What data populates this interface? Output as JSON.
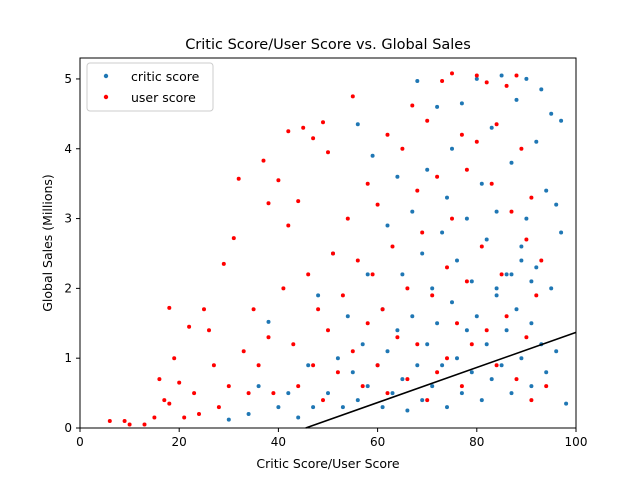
{
  "chart_data": {
    "type": "scatter",
    "title": "Critic Score/User Score vs. Global Sales",
    "xlabel": "Critic Score/User Score",
    "ylabel": "Global Sales (Millions)",
    "xlim": [
      0,
      100
    ],
    "ylim": [
      0,
      5.3
    ],
    "xticks": [
      0,
      20,
      40,
      60,
      80,
      100
    ],
    "yticks": [
      0,
      1,
      2,
      3,
      4,
      5
    ],
    "grid": false,
    "legend_position": "top-left",
    "series": [
      {
        "name": "critic score",
        "color": "#1f77b4",
        "points": [
          [
            30,
            0.12
          ],
          [
            34,
            0.2
          ],
          [
            36,
            0.6
          ],
          [
            38,
            1.52
          ],
          [
            40,
            0.3
          ],
          [
            42,
            0.5
          ],
          [
            44,
            0.15
          ],
          [
            46,
            0.9
          ],
          [
            47,
            0.3
          ],
          [
            48,
            1.9
          ],
          [
            50,
            0.5
          ],
          [
            51,
            2.5
          ],
          [
            52,
            1.0
          ],
          [
            53,
            0.3
          ],
          [
            54,
            1.6
          ],
          [
            55,
            0.8
          ],
          [
            56,
            4.35
          ],
          [
            56,
            0.4
          ],
          [
            57,
            1.2
          ],
          [
            58,
            2.2
          ],
          [
            58,
            0.6
          ],
          [
            59,
            3.9
          ],
          [
            60,
            0.9
          ],
          [
            61,
            1.7
          ],
          [
            61,
            0.3
          ],
          [
            62,
            2.9
          ],
          [
            62,
            1.1
          ],
          [
            63,
            0.5
          ],
          [
            64,
            3.6
          ],
          [
            64,
            1.4
          ],
          [
            65,
            2.2
          ],
          [
            65,
            0.7
          ],
          [
            66,
            0.25
          ],
          [
            67,
            3.1
          ],
          [
            67,
            1.6
          ],
          [
            68,
            4.97
          ],
          [
            68,
            0.9
          ],
          [
            69,
            2.5
          ],
          [
            69,
            0.4
          ],
          [
            70,
            3.7
          ],
          [
            70,
            1.2
          ],
          [
            71,
            2.0
          ],
          [
            71,
            0.6
          ],
          [
            72,
            4.6
          ],
          [
            72,
            1.5
          ],
          [
            73,
            2.8
          ],
          [
            73,
            0.9
          ],
          [
            74,
            3.3
          ],
          [
            74,
            0.3
          ],
          [
            75,
            4.0
          ],
          [
            75,
            1.8
          ],
          [
            76,
            2.4
          ],
          [
            76,
            1.0
          ],
          [
            77,
            4.65
          ],
          [
            77,
            0.5
          ],
          [
            78,
            3.0
          ],
          [
            78,
            1.4
          ],
          [
            79,
            2.1
          ],
          [
            79,
            0.8
          ],
          [
            80,
            5.0
          ],
          [
            80,
            1.6
          ],
          [
            81,
            3.5
          ],
          [
            81,
            0.4
          ],
          [
            82,
            2.7
          ],
          [
            82,
            1.2
          ],
          [
            83,
            4.3
          ],
          [
            83,
            0.7
          ],
          [
            84,
            3.1
          ],
          [
            84,
            1.9
          ],
          [
            85,
            5.05
          ],
          [
            85,
            0.9
          ],
          [
            86,
            2.2
          ],
          [
            86,
            1.4
          ],
          [
            87,
            3.8
          ],
          [
            87,
            0.5
          ],
          [
            88,
            4.7
          ],
          [
            88,
            1.7
          ],
          [
            89,
            2.6
          ],
          [
            89,
            1.0
          ],
          [
            90,
            5.0
          ],
          [
            90,
            3.0
          ],
          [
            91,
            1.5
          ],
          [
            91,
            0.6
          ],
          [
            92,
            4.1
          ],
          [
            92,
            2.3
          ],
          [
            93,
            4.85
          ],
          [
            93,
            1.2
          ],
          [
            94,
            3.4
          ],
          [
            94,
            0.8
          ],
          [
            95,
            4.5
          ],
          [
            95,
            2.0
          ],
          [
            96,
            3.2
          ],
          [
            96,
            1.1
          ],
          [
            97,
            2.8
          ],
          [
            97,
            4.4
          ],
          [
            98,
            0.35
          ],
          [
            91,
            2.1
          ],
          [
            89,
            2.4
          ],
          [
            87,
            2.2
          ],
          [
            84,
            2.0
          ]
        ]
      },
      {
        "name": "user score",
        "color": "#ff0000",
        "points": [
          [
            6,
            0.1
          ],
          [
            9,
            0.1
          ],
          [
            10,
            0.05
          ],
          [
            13,
            0.05
          ],
          [
            15,
            0.15
          ],
          [
            16,
            0.7
          ],
          [
            17,
            0.4
          ],
          [
            18,
            0.35
          ],
          [
            18,
            1.72
          ],
          [
            19,
            1.0
          ],
          [
            20,
            0.65
          ],
          [
            21,
            0.15
          ],
          [
            22,
            1.45
          ],
          [
            23,
            0.5
          ],
          [
            24,
            0.2
          ],
          [
            25,
            1.7
          ],
          [
            26,
            1.4
          ],
          [
            27,
            0.9
          ],
          [
            28,
            0.3
          ],
          [
            29,
            2.35
          ],
          [
            30,
            0.6
          ],
          [
            31,
            2.72
          ],
          [
            32,
            3.57
          ],
          [
            33,
            1.1
          ],
          [
            34,
            0.5
          ],
          [
            35,
            1.7
          ],
          [
            36,
            0.9
          ],
          [
            37,
            3.83
          ],
          [
            38,
            3.22
          ],
          [
            38,
            1.3
          ],
          [
            39,
            0.5
          ],
          [
            40,
            3.55
          ],
          [
            41,
            2.0
          ],
          [
            42,
            4.25
          ],
          [
            42,
            2.9
          ],
          [
            43,
            1.2
          ],
          [
            44,
            3.25
          ],
          [
            44,
            0.6
          ],
          [
            45,
            4.3
          ],
          [
            46,
            2.2
          ],
          [
            47,
            4.15
          ],
          [
            47,
            0.9
          ],
          [
            48,
            1.7
          ],
          [
            49,
            4.38
          ],
          [
            49,
            0.4
          ],
          [
            50,
            3.95
          ],
          [
            50,
            1.4
          ],
          [
            51,
            2.5
          ],
          [
            52,
            0.8
          ],
          [
            53,
            1.9
          ],
          [
            54,
            3.0
          ],
          [
            55,
            4.75
          ],
          [
            55,
            1.1
          ],
          [
            56,
            2.4
          ],
          [
            57,
            0.6
          ],
          [
            58,
            3.5
          ],
          [
            58,
            1.5
          ],
          [
            59,
            2.2
          ],
          [
            60,
            0.9
          ],
          [
            60,
            3.2
          ],
          [
            61,
            1.7
          ],
          [
            62,
            4.2
          ],
          [
            62,
            0.5
          ],
          [
            63,
            2.6
          ],
          [
            64,
            1.3
          ],
          [
            65,
            4.0
          ],
          [
            66,
            2.0
          ],
          [
            66,
            0.7
          ],
          [
            67,
            4.62
          ],
          [
            68,
            3.4
          ],
          [
            68,
            1.2
          ],
          [
            69,
            2.8
          ],
          [
            70,
            0.4
          ],
          [
            70,
            4.4
          ],
          [
            71,
            1.9
          ],
          [
            72,
            3.6
          ],
          [
            72,
            0.8
          ],
          [
            73,
            4.97
          ],
          [
            74,
            2.3
          ],
          [
            74,
            1.0
          ],
          [
            75,
            5.08
          ],
          [
            75,
            3.0
          ],
          [
            76,
            1.5
          ],
          [
            77,
            4.2
          ],
          [
            77,
            0.6
          ],
          [
            78,
            3.7
          ],
          [
            78,
            2.1
          ],
          [
            79,
            1.2
          ],
          [
            80,
            5.05
          ],
          [
            80,
            4.1
          ],
          [
            81,
            2.6
          ],
          [
            82,
            4.95
          ],
          [
            82,
            1.4
          ],
          [
            83,
            3.5
          ],
          [
            84,
            0.9
          ],
          [
            84,
            4.35
          ],
          [
            85,
            2.2
          ],
          [
            86,
            4.9
          ],
          [
            86,
            1.6
          ],
          [
            87,
            3.1
          ],
          [
            88,
            5.05
          ],
          [
            88,
            0.7
          ],
          [
            89,
            4.0
          ],
          [
            90,
            2.7
          ],
          [
            90,
            1.3
          ],
          [
            91,
            3.3
          ],
          [
            91,
            0.4
          ],
          [
            92,
            1.9
          ],
          [
            93,
            2.4
          ],
          [
            94,
            0.6
          ]
        ]
      }
    ],
    "trendline": {
      "color": "#000000",
      "points": [
        [
          45.5,
          0
        ],
        [
          100,
          1.37
        ]
      ]
    }
  }
}
